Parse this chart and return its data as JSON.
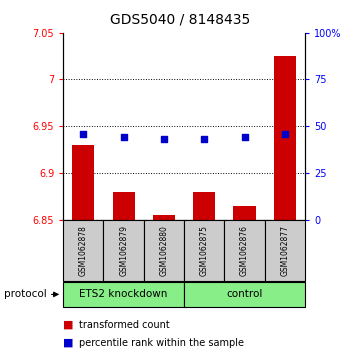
{
  "title": "GDS5040 / 8148435",
  "samples": [
    "GSM1062878",
    "GSM1062879",
    "GSM1062880",
    "GSM1062875",
    "GSM1062876",
    "GSM1062877"
  ],
  "transformed_counts": [
    6.93,
    6.88,
    6.855,
    6.88,
    6.865,
    7.025
  ],
  "percentile_ranks": [
    46,
    44,
    43,
    43,
    44,
    46
  ],
  "ylim_left": [
    6.85,
    7.05
  ],
  "ylim_right": [
    0,
    100
  ],
  "yticks_left": [
    6.85,
    6.9,
    6.95,
    7.0,
    7.05
  ],
  "yticks_right": [
    0,
    25,
    50,
    75,
    100
  ],
  "ytick_labels_left": [
    "6.85",
    "6.9",
    "6.95",
    "7",
    "7.05"
  ],
  "ytick_labels_right": [
    "0",
    "25",
    "50",
    "75",
    "100%"
  ],
  "hlines": [
    7.0,
    6.95,
    6.9
  ],
  "bar_color": "#cc0000",
  "dot_color": "#0000cc",
  "bar_bottom": 6.85,
  "dot_size": 22,
  "bar_width": 0.55,
  "protocol_label": "protocol",
  "legend_items": [
    {
      "color": "#cc0000",
      "label": "transformed count"
    },
    {
      "color": "#0000cc",
      "label": "percentile rank within the sample"
    }
  ],
  "grid_linestyle": ":",
  "grid_color": "#000000",
  "title_fontsize": 10,
  "tick_fontsize": 7,
  "sample_fontsize": 5.5,
  "group_fontsize": 7.5,
  "legend_fontsize": 7,
  "protocol_fontsize": 7.5,
  "group_defs": [
    {
      "start": 0,
      "end": 2,
      "label": "ETS2 knockdown",
      "color": "#88ee88"
    },
    {
      "start": 3,
      "end": 5,
      "label": "control",
      "color": "#88ee88"
    }
  ]
}
